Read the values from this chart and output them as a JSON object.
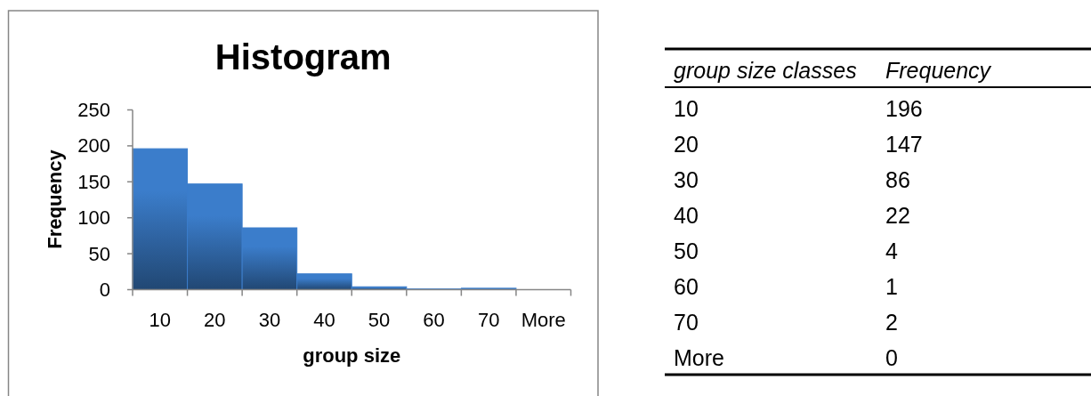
{
  "chart_data": [
    {
      "type": "bar",
      "title": "Histogram",
      "xlabel": "group size",
      "ylabel": "Frequency",
      "categories": [
        "10",
        "20",
        "30",
        "40",
        "50",
        "60",
        "70",
        "More"
      ],
      "values": [
        196,
        147,
        86,
        22,
        4,
        1,
        2,
        0
      ],
      "color": "#3b7dcb",
      "ylim": [
        0,
        250
      ],
      "yticks": [
        0,
        50,
        100,
        150,
        200,
        250
      ]
    },
    {
      "type": "heatmap",
      "ylabel": "group size classes",
      "categories": [
        "Frequency"
      ],
      "y_categories": [
        "10",
        "20",
        "30",
        "40",
        "50",
        "60",
        "70",
        "More"
      ],
      "cells": [
        [
          196
        ],
        [
          147
        ],
        [
          86
        ],
        [
          22
        ],
        [
          4
        ],
        [
          1
        ],
        [
          2
        ],
        [
          0
        ]
      ],
      "data_labels": true
    }
  ]
}
